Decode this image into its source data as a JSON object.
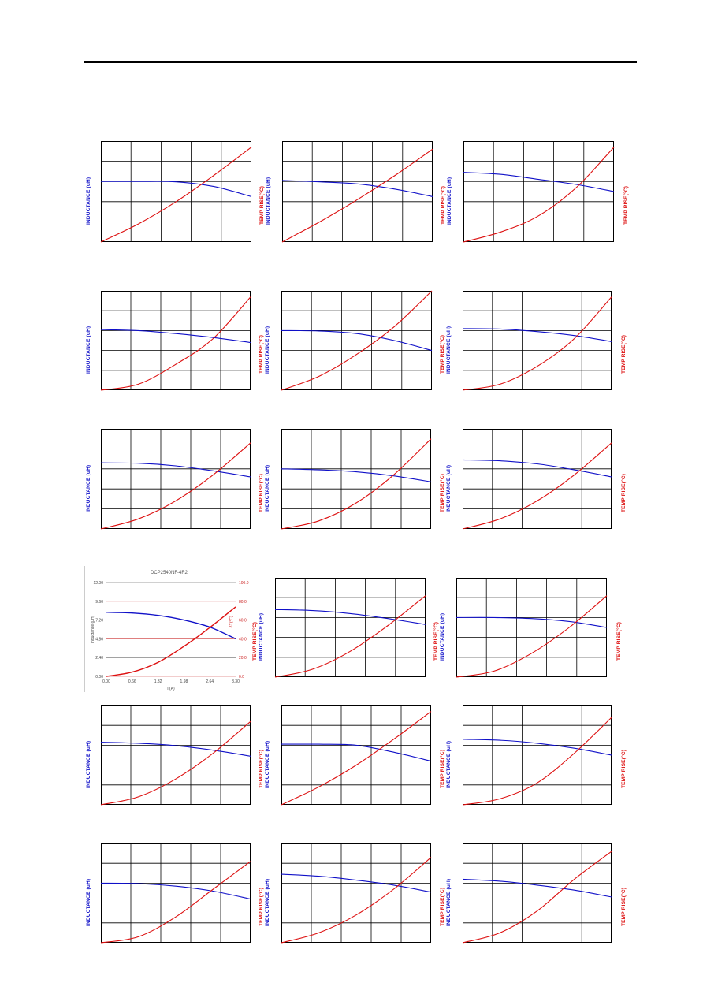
{
  "header": {},
  "labels": {
    "inductance": "INDUCTANCE (uH)",
    "temp_rise": "TEMP RISE(°C)"
  },
  "colors": {
    "inductance_curve": "#1010c8",
    "temp_curve": "#dd1010",
    "grid": "#000000"
  },
  "chart_data": [
    {
      "type": "line",
      "grid": "5x5",
      "series": [
        {
          "role": "inductance",
          "values": [
            3.0,
            3.0,
            2.98,
            2.75,
            2.25
          ]
        },
        {
          "role": "temp_rise",
          "values": [
            0,
            0.9,
            2.0,
            3.3,
            4.7
          ]
        }
      ]
    },
    {
      "type": "line",
      "grid": "5x5",
      "series": [
        {
          "role": "inductance",
          "values": [
            3.05,
            2.98,
            2.88,
            2.62,
            2.25
          ]
        },
        {
          "role": "temp_rise",
          "values": [
            0,
            1.0,
            2.1,
            3.3,
            4.6
          ]
        }
      ]
    },
    {
      "type": "line",
      "grid": "5x5",
      "series": [
        {
          "role": "inductance",
          "values": [
            3.45,
            3.35,
            3.1,
            2.85,
            2.5
          ]
        },
        {
          "role": "temp_rise",
          "values": [
            0,
            0.5,
            1.3,
            2.7,
            4.7
          ]
        }
      ]
    },
    {
      "type": "line",
      "grid": "5x5",
      "series": [
        {
          "role": "inductance",
          "values": [
            3.05,
            3.0,
            2.85,
            2.65,
            2.4
          ]
        },
        {
          "role": "temp_rise",
          "values": [
            0,
            0.3,
            1.3,
            2.6,
            4.7
          ]
        }
      ]
    },
    {
      "type": "line",
      "grid": "5x5",
      "series": [
        {
          "role": "inductance",
          "values": [
            3.0,
            2.98,
            2.85,
            2.5,
            2.0
          ]
        },
        {
          "role": "temp_rise",
          "values": [
            0,
            0.7,
            1.8,
            3.2,
            5.0
          ]
        }
      ]
    },
    {
      "type": "line",
      "grid": "5x5",
      "series": [
        {
          "role": "inductance",
          "values": [
            3.1,
            3.08,
            2.95,
            2.75,
            2.45
          ]
        },
        {
          "role": "temp_rise",
          "values": [
            0,
            0.3,
            1.2,
            2.6,
            4.7
          ]
        }
      ]
    },
    {
      "type": "line",
      "grid": "5x5",
      "series": [
        {
          "role": "inductance",
          "values": [
            3.3,
            3.28,
            3.15,
            2.9,
            2.6
          ]
        },
        {
          "role": "temp_rise",
          "values": [
            0,
            0.5,
            1.4,
            2.7,
            4.3
          ]
        }
      ]
    },
    {
      "type": "line",
      "grid": "5x5",
      "series": [
        {
          "role": "inductance",
          "values": [
            3.0,
            2.95,
            2.85,
            2.65,
            2.35
          ]
        },
        {
          "role": "temp_rise",
          "values": [
            0,
            0.4,
            1.3,
            2.7,
            4.5
          ]
        }
      ]
    },
    {
      "type": "line",
      "grid": "5x5",
      "series": [
        {
          "role": "inductance",
          "values": [
            3.45,
            3.4,
            3.25,
            2.95,
            2.6
          ]
        },
        {
          "role": "temp_rise",
          "values": [
            0,
            0.5,
            1.4,
            2.7,
            4.3
          ]
        }
      ]
    },
    {
      "type": "line",
      "title": "DCP2540NF-4R2",
      "xlabel": "I (A)",
      "ylabel": "Inductance (µH)",
      "y2label": "ΔT(°C)",
      "x_ticks": [
        "0.00",
        "0.66",
        "1.32",
        "1.98",
        "2.64",
        "3.30"
      ],
      "y_ticks": [
        "0.00",
        "2.40",
        "4.80",
        "7.20",
        "9.60",
        "12.00"
      ],
      "y2_ticks": [
        "0.0",
        "20.0",
        "40.0",
        "60.0",
        "80.0",
        "100.0"
      ],
      "xlim": [
        0,
        3.3
      ],
      "ylim": [
        0,
        12.0
      ],
      "y2lim": [
        0,
        100.0
      ],
      "series": [
        {
          "role": "inductance",
          "x": [
            0,
            0.66,
            1.32,
            1.98,
            2.64,
            3.3
          ],
          "y": [
            8.2,
            8.1,
            7.8,
            7.2,
            6.3,
            4.8
          ]
        },
        {
          "role": "temp_rise",
          "x": [
            0,
            0.66,
            1.32,
            1.98,
            2.64,
            3.3
          ],
          "y": [
            0,
            4.5,
            15,
            32,
            52,
            74
          ]
        }
      ]
    },
    {
      "type": "line",
      "grid": "5x5",
      "series": [
        {
          "role": "inductance",
          "values": [
            3.4,
            3.35,
            3.2,
            2.95,
            2.65
          ]
        },
        {
          "role": "temp_rise",
          "values": [
            0,
            0.4,
            1.3,
            2.6,
            4.1
          ]
        }
      ]
    },
    {
      "type": "line",
      "grid": "5x5",
      "series": [
        {
          "role": "inductance",
          "values": [
            3.0,
            3.0,
            2.95,
            2.8,
            2.5
          ]
        },
        {
          "role": "temp_rise",
          "values": [
            0,
            0.3,
            1.2,
            2.5,
            4.1
          ]
        }
      ]
    },
    {
      "type": "line",
      "grid": "5x5",
      "series": [
        {
          "role": "inductance",
          "values": [
            3.15,
            3.1,
            2.98,
            2.75,
            2.45
          ]
        },
        {
          "role": "temp_rise",
          "values": [
            0,
            0.4,
            1.3,
            2.6,
            4.2
          ]
        }
      ]
    },
    {
      "type": "line",
      "grid": "5x5",
      "series": [
        {
          "role": "inductance",
          "values": [
            3.05,
            3.05,
            3.0,
            2.65,
            2.2
          ]
        },
        {
          "role": "temp_rise",
          "values": [
            0,
            0.9,
            2.0,
            3.3,
            4.7
          ]
        }
      ]
    },
    {
      "type": "line",
      "grid": "5x5",
      "series": [
        {
          "role": "inductance",
          "values": [
            3.3,
            3.25,
            3.1,
            2.85,
            2.5
          ]
        },
        {
          "role": "temp_rise",
          "values": [
            0,
            0.3,
            1.1,
            2.6,
            4.4
          ]
        }
      ]
    },
    {
      "type": "line",
      "grid": "5x5",
      "series": [
        {
          "role": "inductance",
          "values": [
            3.0,
            2.98,
            2.85,
            2.6,
            2.2
          ]
        },
        {
          "role": "temp_rise",
          "values": [
            0,
            0.3,
            1.3,
            2.7,
            4.1
          ]
        }
      ]
    },
    {
      "type": "line",
      "grid": "5x5",
      "series": [
        {
          "role": "inductance",
          "values": [
            3.45,
            3.35,
            3.15,
            2.9,
            2.55
          ]
        },
        {
          "role": "temp_rise",
          "values": [
            0,
            0.5,
            1.4,
            2.7,
            4.3
          ]
        }
      ]
    },
    {
      "type": "line",
      "grid": "5x5",
      "series": [
        {
          "role": "inductance",
          "values": [
            3.2,
            3.1,
            2.9,
            2.65,
            2.3
          ]
        },
        {
          "role": "temp_rise",
          "values": [
            0,
            0.5,
            1.6,
            3.2,
            4.6
          ]
        }
      ]
    }
  ]
}
